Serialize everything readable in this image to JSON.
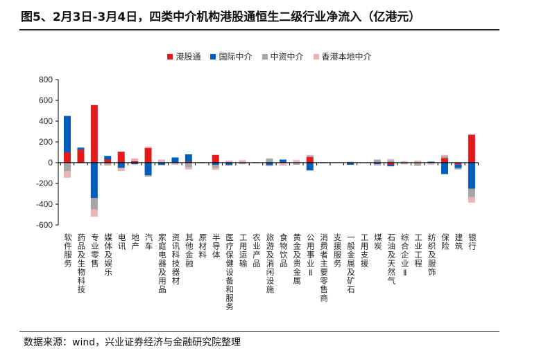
{
  "title": "图5、2月3日-3月4日，四类中介机构港股通恒生二级行业净流入（亿港元）",
  "footer": "数据来源：wind，兴业证券经济与金融研究院整理",
  "chart_data": {
    "type": "bar",
    "stacked": true,
    "title": "",
    "xlabel": "",
    "ylabel": "",
    "ylim": [
      -600,
      800
    ],
    "yticks": [
      -600,
      -400,
      -200,
      0,
      200,
      400,
      600,
      800
    ],
    "grid": false,
    "legend_position": "top",
    "categories": [
      "软件服务",
      "药品及生物科技",
      "专业零售",
      "媒体及娱乐",
      "电讯",
      "地产",
      "汽车",
      "家庭电器及用品",
      "资讯科技器材",
      "其他金融",
      "原材料",
      "半导体",
      "医疗保健设备和服务",
      "工用运输",
      "农业产品",
      "旅游及消闲设施",
      "食物饮品",
      "黄金及贵金属",
      "公用事业Ⅱ",
      "消费者主要零售商",
      "支援服务",
      "一般金属及矿石",
      "工用支援",
      "煤炭",
      "石油及天然气",
      "综合企业Ⅱ",
      "工业工程",
      "纺织及服饰",
      "保险",
      "建筑",
      "银行"
    ],
    "series": [
      {
        "name": "港股通",
        "color": "#e31a1c",
        "values": [
          100,
          125,
          555,
          30,
          105,
          15,
          140,
          5,
          0,
          10,
          -3,
          75,
          0,
          5,
          0,
          0,
          0,
          0,
          55,
          0,
          0,
          0,
          0,
          5,
          -20,
          0,
          0,
          0,
          45,
          -15,
          270
        ]
      },
      {
        "name": "国际中介",
        "color": "#005eb8",
        "values": [
          350,
          20,
          -340,
          35,
          -50,
          -15,
          -120,
          -20,
          50,
          70,
          0,
          -20,
          -20,
          0,
          -3,
          -25,
          30,
          0,
          -75,
          -5,
          0,
          -20,
          0,
          -15,
          -15,
          0,
          0,
          10,
          -110,
          -35,
          -250
        ]
      },
      {
        "name": "中资中介",
        "color": "#a6a6a6",
        "values": [
          -80,
          0,
          -110,
          -20,
          0,
          0,
          -15,
          -5,
          -5,
          -45,
          0,
          -30,
          -10,
          -15,
          0,
          40,
          0,
          -20,
          10,
          0,
          0,
          0,
          -5,
          25,
          20,
          -15,
          -30,
          0,
          15,
          -15,
          -80
        ]
      },
      {
        "name": "香港本地中介",
        "color": "#e8b4b8",
        "values": [
          -65,
          -5,
          -70,
          -10,
          -30,
          25,
          15,
          25,
          -15,
          -20,
          5,
          -20,
          20,
          20,
          5,
          -10,
          -30,
          25,
          10,
          5,
          5,
          10,
          0,
          -15,
          15,
          15,
          20,
          -20,
          15,
          5,
          -55
        ]
      }
    ]
  }
}
